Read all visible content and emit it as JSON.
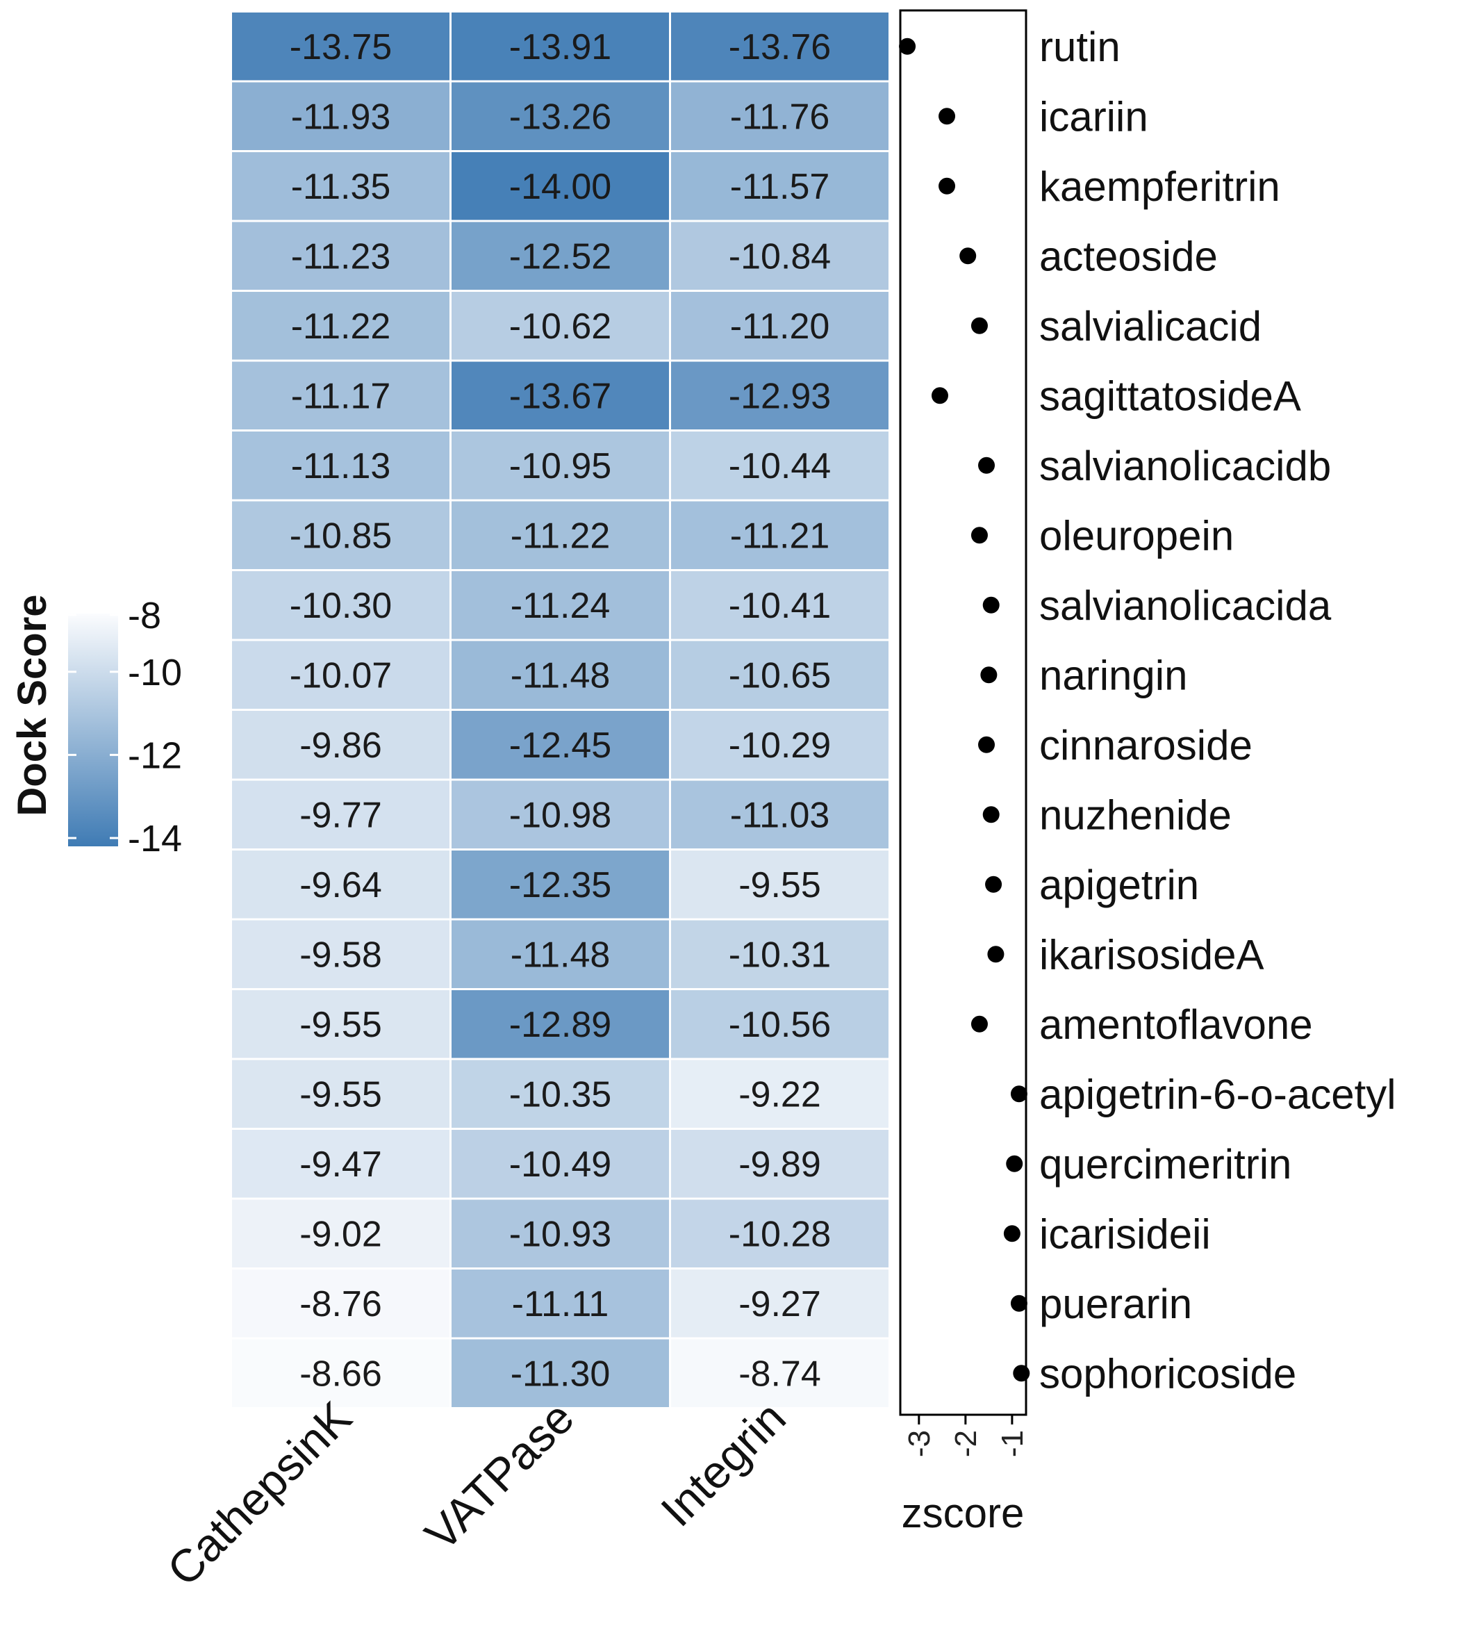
{
  "chart_data": {
    "type": "heatmap",
    "columns": [
      "CathepsinK",
      "VATPase",
      "Integrin"
    ],
    "rows": [
      {
        "compound": "rutin",
        "scores": [
          "-13.75",
          "-13.91",
          "-13.76"
        ],
        "zscore": -3.25
      },
      {
        "compound": "icariin",
        "scores": [
          "-11.93",
          "-13.26",
          "-11.76"
        ],
        "zscore": -2.4
      },
      {
        "compound": "kaempferitrin",
        "scores": [
          "-11.35",
          "-14.00",
          "-11.57"
        ],
        "zscore": -2.4
      },
      {
        "compound": "acteoside",
        "scores": [
          "-11.23",
          "-12.52",
          "-10.84"
        ],
        "zscore": -1.95
      },
      {
        "compound": "salvialicacid",
        "scores": [
          "-11.22",
          "-10.62",
          "-11.20"
        ],
        "zscore": -1.7
      },
      {
        "compound": "sagittatosideA",
        "scores": [
          "-11.17",
          "-13.67",
          "-12.93"
        ],
        "zscore": -2.55
      },
      {
        "compound": "salvianolicacidb",
        "scores": [
          "-11.13",
          "-10.95",
          "-10.44"
        ],
        "zscore": -1.55
      },
      {
        "compound": "oleuropein",
        "scores": [
          "-10.85",
          "-11.22",
          "-11.21"
        ],
        "zscore": -1.7
      },
      {
        "compound": "salvianolicacida",
        "scores": [
          "-10.30",
          "-11.24",
          "-10.41"
        ],
        "zscore": -1.45
      },
      {
        "compound": "naringin",
        "scores": [
          "-10.07",
          "-11.48",
          "-10.65"
        ],
        "zscore": -1.5
      },
      {
        "compound": "cinnaroside",
        "scores": [
          "-9.86",
          "-12.45",
          "-10.29"
        ],
        "zscore": -1.55
      },
      {
        "compound": "nuzhenide",
        "scores": [
          "-9.77",
          "-10.98",
          "-11.03"
        ],
        "zscore": -1.45
      },
      {
        "compound": "apigetrin",
        "scores": [
          "-9.64",
          "-12.35",
          "-9.55"
        ],
        "zscore": -1.4
      },
      {
        "compound": "ikarisosideA",
        "scores": [
          "-9.58",
          "-11.48",
          "-10.31"
        ],
        "zscore": -1.35
      },
      {
        "compound": "amentoflavone",
        "scores": [
          "-9.55",
          "-12.89",
          "-10.56"
        ],
        "zscore": -1.7
      },
      {
        "compound": "apigetrin-6-o-acetyl",
        "scores": [
          "-9.55",
          "-10.35",
          "-9.22"
        ],
        "zscore": -0.85
      },
      {
        "compound": "quercimeritrin",
        "scores": [
          "-9.47",
          "-10.49",
          "-9.89"
        ],
        "zscore": -0.95
      },
      {
        "compound": "icarisideii",
        "scores": [
          "-9.02",
          "-10.93",
          "-10.28"
        ],
        "zscore": -1.0
      },
      {
        "compound": "puerarin",
        "scores": [
          "-8.76",
          "-11.11",
          "-9.27"
        ],
        "zscore": -0.85
      },
      {
        "compound": "sophoricoside",
        "scores": [
          "-8.66",
          "-11.30",
          "-8.74"
        ],
        "zscore": -0.8
      }
    ],
    "color_scale": {
      "title": "Dock Score",
      "min": -14.2,
      "max": -8.6,
      "low_color": "#3f7bb4",
      "high_color": "#fbfcfe",
      "ticks": [
        "-8",
        "-10",
        "-12",
        "-14"
      ]
    },
    "zscore_axis": {
      "title": "zscore",
      "range": [
        -3.4,
        -0.7
      ],
      "ticks": [
        "-3",
        "-2",
        "-1"
      ]
    },
    "point_color": "#000000"
  }
}
